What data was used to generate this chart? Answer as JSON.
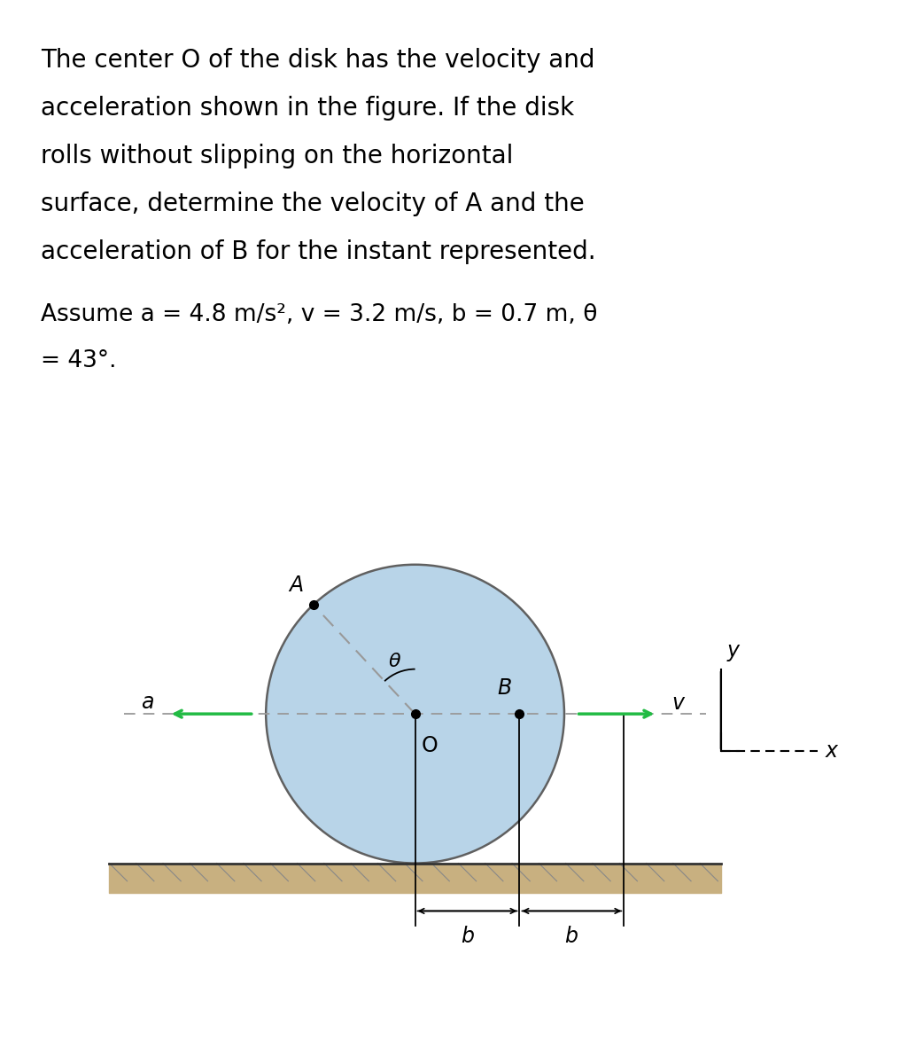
{
  "title_line1": "The center O of the disk has the velocity and",
  "title_line2": "acceleration shown in the figure. If the disk",
  "title_line3": "rolls without slipping on the horizontal",
  "title_line4": "surface, determine the velocity of A and the",
  "title_line5": "acceleration of B for the instant represented.",
  "assume_line1": "Assume a = 4.8 m/s², v = 3.2 m/s, b = 0.7 m, θ",
  "assume_line2": "= 43°.",
  "bg_color": "#ffffff",
  "disk_fill": "#b8d4e8",
  "disk_edge": "#606060",
  "arrow_color": "#22bb44",
  "dashed_color": "#999999",
  "dim_line_color": "#000000",
  "ground_top_color": "#aaaaaa",
  "ground_fill_color": "#c8b080",
  "title_fontsize": 20,
  "assume_fontsize": 19,
  "label_fontsize": 17,
  "theta_fontsize": 16
}
